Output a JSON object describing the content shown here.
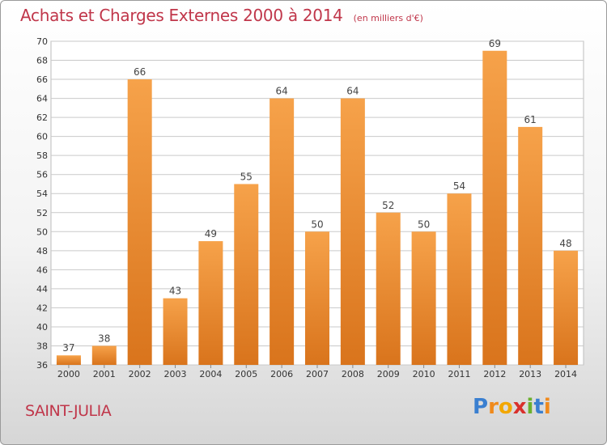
{
  "header": {
    "title": "Achats et Charges Externes 2000 à 2014",
    "unit": "(en milliers d'€)"
  },
  "footer": {
    "commune": "SAINT-JULIA",
    "logo": {
      "letters": [
        "P",
        "r",
        "o",
        "x",
        "i",
        "t",
        "i"
      ],
      "colors": [
        "#3a7fd0",
        "#f08a1c",
        "#f2a700",
        "#d9302c",
        "#6cb02e",
        "#3a7fd0",
        "#f08a1c"
      ]
    }
  },
  "colors": {
    "title": "#c0364a",
    "bar_light": "#f6a24a",
    "bar_dark": "#d9741c",
    "grid": "#c9c9c9",
    "axis_text": "#333333",
    "plot_background": "#ffffff"
  },
  "chart_data": {
    "type": "bar",
    "title": "Achats et Charges Externes 2000 à 2014",
    "subtitle": "(en milliers d'€)",
    "xlabel": "",
    "ylabel": "",
    "grid": true,
    "ylim": [
      36,
      70
    ],
    "yticks": [
      36,
      38,
      40,
      42,
      44,
      46,
      48,
      50,
      52,
      54,
      56,
      58,
      60,
      62,
      64,
      66,
      68,
      70
    ],
    "categories": [
      "2000",
      "2001",
      "2002",
      "2003",
      "2004",
      "2005",
      "2006",
      "2007",
      "2008",
      "2009",
      "2010",
      "2011",
      "2012",
      "2013",
      "2014"
    ],
    "values": [
      37,
      38,
      66,
      43,
      49,
      55,
      64,
      50,
      64,
      52,
      50,
      54,
      69,
      61,
      48
    ]
  }
}
